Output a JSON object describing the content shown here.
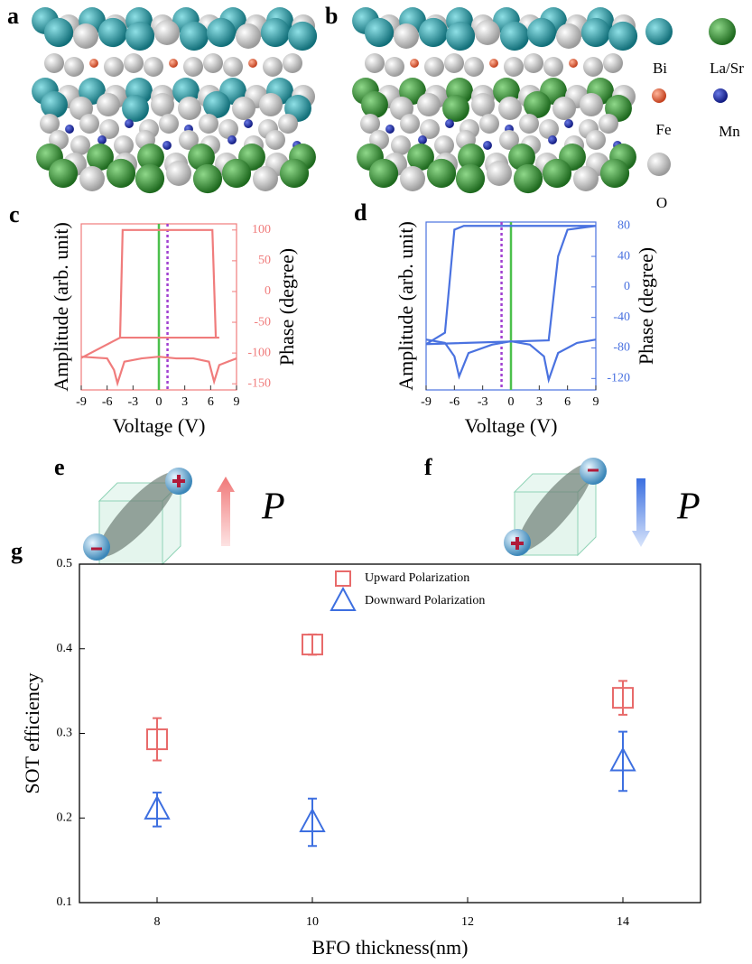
{
  "panel_labels": [
    "a",
    "b",
    "e",
    "f"
  ],
  "atom_legend": [
    "Bi",
    "La/Sr",
    "Fe",
    "Mn",
    "O"
  ],
  "polarization_symbol": "P",
  "chart_data": [
    {
      "type": "line",
      "label": "c",
      "xlabel": "Voltage (V)",
      "ylabel": "Amplitude (arb. unit)",
      "y2label": "Phase (degree)",
      "color": "#f07c7c",
      "xlim": [
        -9,
        9
      ],
      "xticks": [
        -9,
        -6,
        -3,
        0,
        3,
        6,
        9
      ],
      "ylim": [
        0,
        1
      ],
      "y2lim": [
        -160,
        110
      ],
      "y2ticks": [
        100,
        50,
        0,
        -50,
        -100,
        -150
      ],
      "vlines": [
        {
          "x": 0,
          "color": "#4cc04c",
          "style": "solid"
        },
        {
          "x": 1,
          "color": "#a040d0",
          "style": "dotted"
        }
      ],
      "series": [
        {
          "axis": "y2",
          "x": [
            -9,
            -4.5,
            -4.2,
            6.2,
            6.6,
            7,
            -4.5
          ],
          "values": [
            -108,
            -75,
            100,
            100,
            -75,
            -75,
            -75
          ]
        },
        {
          "axis": "y",
          "x": [
            -9,
            -6,
            -5.2,
            -4.8,
            -4,
            -2,
            0,
            2,
            4,
            5.8,
            6.4,
            7,
            9
          ],
          "values": [
            0.2,
            0.19,
            0.12,
            0.04,
            0.17,
            0.19,
            0.2,
            0.19,
            0.19,
            0.17,
            0.05,
            0.15,
            0.19
          ]
        }
      ]
    },
    {
      "type": "line",
      "label": "d",
      "xlabel": "Voltage (V)",
      "ylabel": "Amplitude (arb. unit)",
      "y2label": "Phase (degree)",
      "color": "#4a72e0",
      "xlim": [
        -9,
        9
      ],
      "xticks": [
        -9,
        -6,
        -3,
        0,
        3,
        6,
        9
      ],
      "ylim": [
        0,
        1
      ],
      "y2lim": [
        -135,
        85
      ],
      "y2ticks": [
        80,
        40,
        0,
        -40,
        -80,
        -120
      ],
      "vlines": [
        {
          "x": 0,
          "color": "#4cc04c",
          "style": "solid"
        },
        {
          "x": -1,
          "color": "#a040d0",
          "style": "dotted"
        }
      ],
      "series": [
        {
          "axis": "y2",
          "x": [
            -9,
            4,
            5,
            6,
            9,
            -5,
            -6,
            -7,
            -9
          ],
          "values": [
            -75,
            -70,
            40,
            75,
            80,
            80,
            75,
            -60,
            -75
          ]
        },
        {
          "axis": "y",
          "x": [
            -9,
            -7,
            -6,
            -5.5,
            -4.5,
            -2,
            0,
            2,
            3.5,
            4,
            5,
            7,
            9
          ],
          "values": [
            0.3,
            0.28,
            0.2,
            0.08,
            0.22,
            0.27,
            0.29,
            0.27,
            0.2,
            0.06,
            0.22,
            0.28,
            0.3
          ]
        }
      ]
    },
    {
      "type": "scatter",
      "label": "g",
      "xlabel": "BFO thickness(nm)",
      "ylabel": "SOT efficiency",
      "xlim": [
        7,
        15
      ],
      "xticks": [
        8,
        10,
        12,
        14
      ],
      "ylim": [
        0.1,
        0.5
      ],
      "yticks": [
        0.1,
        0.2,
        0.3,
        0.4,
        0.5
      ],
      "series": [
        {
          "name": "Upward Polarization",
          "color": "#e86a6a",
          "marker": "square",
          "x": [
            8,
            10,
            14
          ],
          "values": [
            0.293,
            0.405,
            0.342
          ],
          "errors": [
            0.025,
            0.012,
            0.02
          ]
        },
        {
          "name": "Downward Polarization",
          "color": "#3d6fe0",
          "marker": "triangle",
          "x": [
            8,
            10,
            14
          ],
          "values": [
            0.21,
            0.195,
            0.267
          ],
          "errors": [
            0.02,
            0.028,
            0.035
          ]
        }
      ]
    }
  ]
}
